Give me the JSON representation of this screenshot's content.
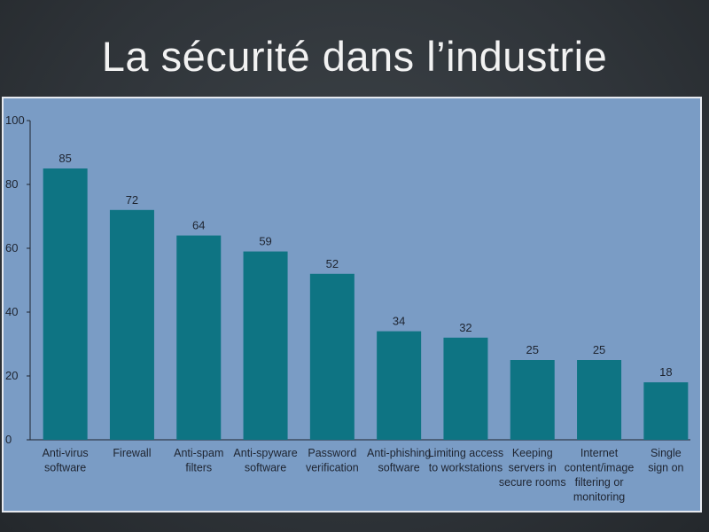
{
  "slide": {
    "title": "La sécurité dans l’industrie"
  },
  "colors": {
    "bar": "#0e7483",
    "background": "#7a9cc5",
    "axis": "#1e2430"
  },
  "chart_data": {
    "type": "bar",
    "title": "",
    "xlabel": "",
    "ylabel": "",
    "ylim": [
      0,
      100
    ],
    "yticks": [
      0,
      20,
      40,
      60,
      80,
      100
    ],
    "categories": [
      [
        "Anti-virus",
        "software"
      ],
      [
        "Firewall"
      ],
      [
        "Anti-spam",
        "filters"
      ],
      [
        "Anti-spyware",
        "software"
      ],
      [
        "Password",
        "verification"
      ],
      [
        "Anti-phishing",
        "software"
      ],
      [
        "Limiting access",
        "to workstations"
      ],
      [
        "Keeping",
        "servers in",
        "secure rooms"
      ],
      [
        "Internet",
        "content/image",
        "filtering or",
        "monitoring"
      ],
      [
        "Single",
        "sign on"
      ]
    ],
    "values": [
      85,
      72,
      64,
      59,
      52,
      34,
      32,
      25,
      25,
      18
    ],
    "grid": false,
    "legend": "none"
  }
}
